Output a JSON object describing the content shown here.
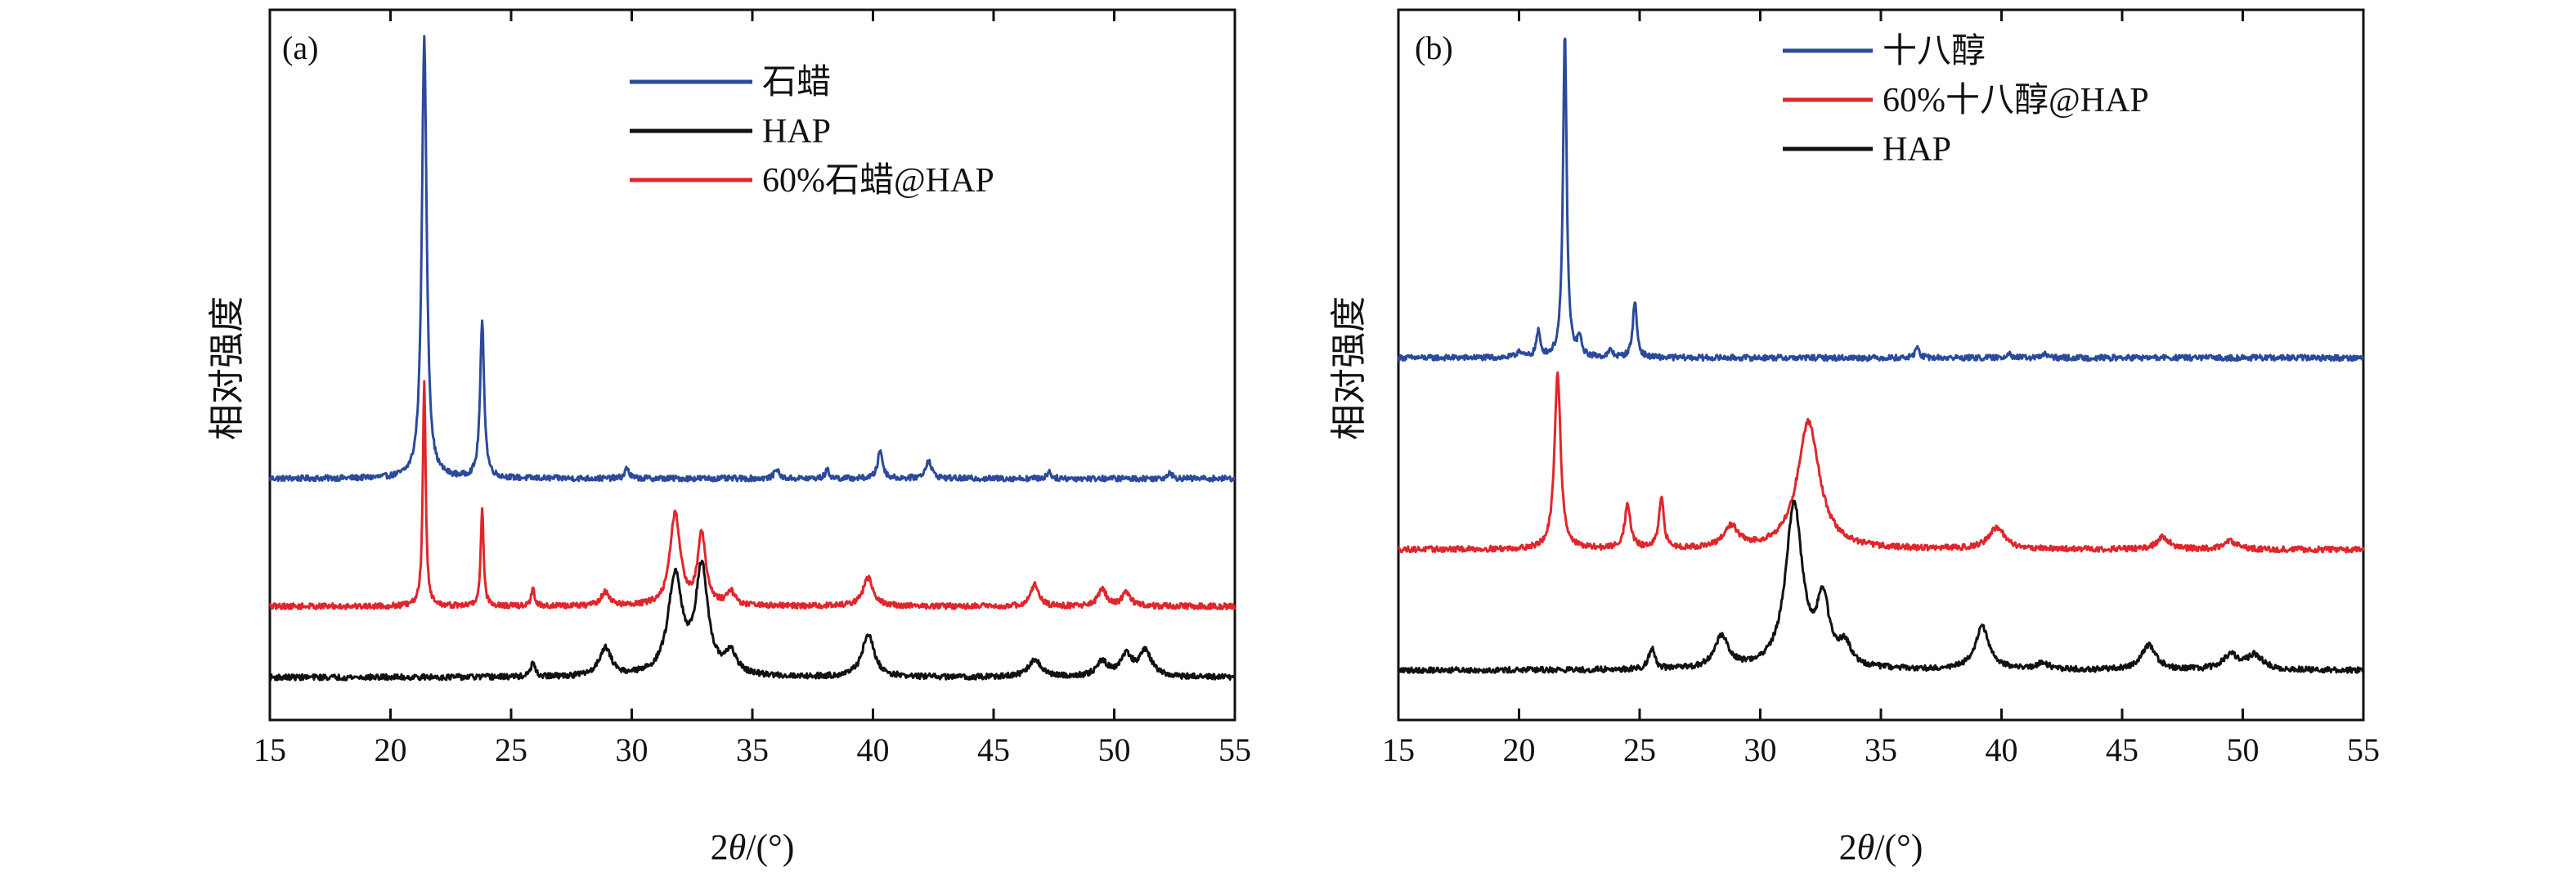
{
  "chart_data": [
    {
      "type": "line",
      "panel_label": "(a)",
      "xlabel_prefix": "2",
      "xlabel_theta": "θ",
      "xlabel_suffix": "/(°)",
      "ylabel": "相对强度",
      "xlim": [
        15,
        55
      ],
      "ylim": [
        0,
        1
      ],
      "xticks": [
        "15",
        "20",
        "25",
        "30",
        "35",
        "40",
        "45",
        "50",
        "55"
      ],
      "legend_position": "top-center",
      "series": [
        {
          "name": "石蜡",
          "color": "#2b4a9c",
          "baseline": 0.34,
          "peaks": [
            [
              21.4,
              0.62,
              0.12
            ],
            [
              23.8,
              0.22,
              0.1
            ],
            [
              29.8,
              0.015,
              0.1
            ],
            [
              36.0,
              0.015,
              0.1
            ],
            [
              38.1,
              0.012,
              0.1
            ],
            [
              40.3,
              0.04,
              0.12
            ],
            [
              42.3,
              0.025,
              0.15
            ],
            [
              47.3,
              0.01,
              0.1
            ],
            [
              52.3,
              0.01,
              0.1
            ]
          ]
        },
        {
          "name": "HAP",
          "color": "#111111",
          "baseline": 0.06,
          "peaks": [
            [
              25.9,
              0.02,
              0.1
            ],
            [
              28.9,
              0.04,
              0.3
            ],
            [
              31.8,
              0.14,
              0.35
            ],
            [
              32.9,
              0.15,
              0.3
            ],
            [
              34.1,
              0.03,
              0.3
            ],
            [
              39.8,
              0.06,
              0.3
            ],
            [
              46.7,
              0.025,
              0.3
            ],
            [
              49.5,
              0.02,
              0.3
            ],
            [
              50.5,
              0.03,
              0.3
            ],
            [
              51.3,
              0.035,
              0.3
            ]
          ]
        },
        {
          "name": "60%石蜡@HAP",
          "color": "#e0262b",
          "baseline": 0.16,
          "peaks": [
            [
              21.4,
              0.32,
              0.07
            ],
            [
              23.8,
              0.14,
              0.07
            ],
            [
              25.9,
              0.025,
              0.08
            ],
            [
              28.9,
              0.02,
              0.2
            ],
            [
              31.8,
              0.13,
              0.25
            ],
            [
              32.9,
              0.1,
              0.2
            ],
            [
              34.1,
              0.02,
              0.2
            ],
            [
              39.8,
              0.04,
              0.25
            ],
            [
              46.7,
              0.03,
              0.2
            ],
            [
              49.5,
              0.025,
              0.2
            ],
            [
              50.5,
              0.02,
              0.2
            ]
          ]
        }
      ]
    },
    {
      "type": "line",
      "panel_label": "(b)",
      "xlabel_prefix": "2",
      "xlabel_theta": "θ",
      "xlabel_suffix": "/(°)",
      "ylabel": "相对强度",
      "xlim": [
        15,
        55
      ],
      "ylim": [
        0,
        1
      ],
      "xticks": [
        "15",
        "20",
        "25",
        "30",
        "35",
        "40",
        "45",
        "50",
        "55"
      ],
      "legend_position": "top-center",
      "series": [
        {
          "name": "十八醇",
          "color": "#2b4a9c",
          "baseline": 0.51,
          "peaks": [
            [
              20.0,
              0.01,
              0.1
            ],
            [
              20.8,
              0.035,
              0.1
            ],
            [
              21.9,
              0.46,
              0.09
            ],
            [
              22.5,
              0.025,
              0.1
            ],
            [
              23.8,
              0.01,
              0.1
            ],
            [
              24.8,
              0.08,
              0.1
            ],
            [
              36.5,
              0.015,
              0.1
            ],
            [
              40.3,
              0.008,
              0.1
            ],
            [
              41.8,
              0.006,
              0.1
            ]
          ]
        },
        {
          "name": "60%十八醇@HAP",
          "color": "#e0262b",
          "baseline": 0.24,
          "peaks": [
            [
              21.6,
              0.25,
              0.15
            ],
            [
              24.5,
              0.06,
              0.15
            ],
            [
              25.9,
              0.07,
              0.12
            ],
            [
              28.8,
              0.03,
              0.35
            ],
            [
              32.0,
              0.18,
              0.55
            ],
            [
              39.8,
              0.03,
              0.4
            ],
            [
              46.7,
              0.018,
              0.3
            ],
            [
              49.5,
              0.012,
              0.3
            ]
          ]
        },
        {
          "name": "HAP",
          "color": "#111111",
          "baseline": 0.07,
          "peaks": [
            [
              25.5,
              0.03,
              0.15
            ],
            [
              28.4,
              0.045,
              0.35
            ],
            [
              31.4,
              0.23,
              0.42
            ],
            [
              32.6,
              0.09,
              0.3
            ],
            [
              33.5,
              0.03,
              0.3
            ],
            [
              39.2,
              0.06,
              0.35
            ],
            [
              41.7,
              0.01,
              0.3
            ],
            [
              46.1,
              0.035,
              0.35
            ],
            [
              49.5,
              0.02,
              0.4
            ],
            [
              50.5,
              0.02,
              0.4
            ]
          ]
        }
      ]
    }
  ]
}
